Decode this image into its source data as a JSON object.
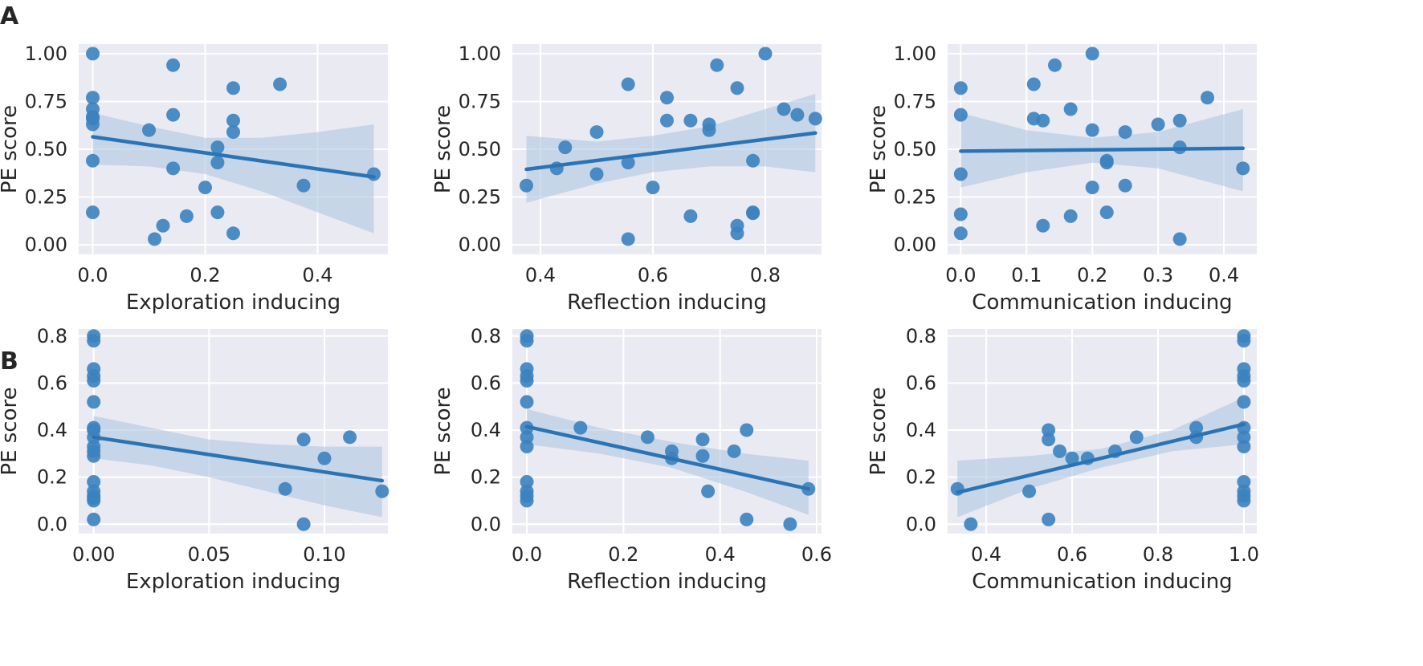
{
  "figure": {
    "row_labels": [
      "A",
      "B"
    ]
  },
  "colors": {
    "background": "#eaeaf2",
    "grid": "#ffffff",
    "points": "#3b82bf",
    "line": "#2a74b5",
    "band": "#a8c3df"
  },
  "chart_data": [
    {
      "type": "scatter",
      "row": "A",
      "xlabel": "Exploration inducing",
      "ylabel": "PE score",
      "xlim": [
        -0.025,
        0.525
      ],
      "ylim": [
        -0.05,
        1.05
      ],
      "xticks": [
        "0.0",
        "0.2",
        "0.4"
      ],
      "yticks": [
        "0.00",
        "0.25",
        "0.50",
        "0.75",
        "1.00"
      ],
      "points": [
        [
          0,
          1.0
        ],
        [
          0,
          0.77
        ],
        [
          0,
          0.71
        ],
        [
          0,
          0.67
        ],
        [
          0,
          0.66
        ],
        [
          0,
          0.63
        ],
        [
          0,
          0.44
        ],
        [
          0,
          0.17
        ],
        [
          0.1,
          0.6
        ],
        [
          0.11,
          0.03
        ],
        [
          0.125,
          0.1
        ],
        [
          0.143,
          0.94
        ],
        [
          0.143,
          0.68
        ],
        [
          0.143,
          0.4
        ],
        [
          0.167,
          0.15
        ],
        [
          0.2,
          0.3
        ],
        [
          0.222,
          0.51
        ],
        [
          0.222,
          0.43
        ],
        [
          0.222,
          0.17
        ],
        [
          0.25,
          0.82
        ],
        [
          0.25,
          0.65
        ],
        [
          0.25,
          0.59
        ],
        [
          0.25,
          0.06
        ],
        [
          0.333,
          0.84
        ],
        [
          0.375,
          0.31
        ],
        [
          0.5,
          0.37
        ]
      ],
      "regression": {
        "x": [
          0,
          0.5
        ],
        "y": [
          0.565,
          0.355
        ]
      },
      "ci_band": {
        "x": [
          0,
          0.1,
          0.2,
          0.3,
          0.4,
          0.5
        ],
        "lower": [
          0.42,
          0.41,
          0.37,
          0.28,
          0.17,
          0.06
        ],
        "upper": [
          0.69,
          0.62,
          0.56,
          0.56,
          0.59,
          0.63
        ]
      }
    },
    {
      "type": "scatter",
      "row": "A",
      "xlabel": "Reflection inducing",
      "ylabel": "PE score",
      "xlim": [
        0.35,
        0.9
      ],
      "ylim": [
        -0.05,
        1.05
      ],
      "xticks": [
        "0.4",
        "0.6",
        "0.8"
      ],
      "yticks": [
        "0.00",
        "0.25",
        "0.50",
        "0.75",
        "1.00"
      ],
      "points": [
        [
          0.375,
          0.31
        ],
        [
          0.429,
          0.4
        ],
        [
          0.444,
          0.51
        ],
        [
          0.5,
          0.59
        ],
        [
          0.5,
          0.37
        ],
        [
          0.556,
          0.84
        ],
        [
          0.556,
          0.43
        ],
        [
          0.556,
          0.03
        ],
        [
          0.6,
          0.3
        ],
        [
          0.625,
          0.77
        ],
        [
          0.625,
          0.65
        ],
        [
          0.667,
          0.65
        ],
        [
          0.667,
          0.15
        ],
        [
          0.7,
          0.63
        ],
        [
          0.7,
          0.6
        ],
        [
          0.714,
          0.94
        ],
        [
          0.75,
          0.82
        ],
        [
          0.75,
          0.1
        ],
        [
          0.75,
          0.06
        ],
        [
          0.778,
          0.44
        ],
        [
          0.778,
          0.17
        ],
        [
          0.778,
          0.165
        ],
        [
          0.8,
          1.0
        ],
        [
          0.833,
          0.71
        ],
        [
          0.857,
          0.68
        ],
        [
          0.889,
          0.66
        ]
      ],
      "regression": {
        "x": [
          0.375,
          0.889
        ],
        "y": [
          0.395,
          0.585
        ]
      },
      "ci_band": {
        "x": [
          0.375,
          0.5,
          0.6,
          0.7,
          0.8,
          0.889
        ],
        "lower": [
          0.22,
          0.32,
          0.38,
          0.41,
          0.41,
          0.38
        ],
        "upper": [
          0.57,
          0.54,
          0.57,
          0.62,
          0.71,
          0.79
        ]
      }
    },
    {
      "type": "scatter",
      "row": "A",
      "xlabel": "Communication inducing",
      "ylabel": "PE score",
      "xlim": [
        -0.02,
        0.45
      ],
      "ylim": [
        -0.05,
        1.05
      ],
      "xticks": [
        "0.0",
        "0.1",
        "0.2",
        "0.3",
        "0.4"
      ],
      "yticks": [
        "0.00",
        "0.25",
        "0.50",
        "0.75",
        "1.00"
      ],
      "points": [
        [
          0,
          0.82
        ],
        [
          0,
          0.68
        ],
        [
          0,
          0.37
        ],
        [
          0,
          0.16
        ],
        [
          0,
          0.06
        ],
        [
          0.111,
          0.84
        ],
        [
          0.111,
          0.66
        ],
        [
          0.125,
          0.65
        ],
        [
          0.125,
          0.1
        ],
        [
          0.143,
          0.94
        ],
        [
          0.167,
          0.71
        ],
        [
          0.167,
          0.15
        ],
        [
          0.2,
          1.0
        ],
        [
          0.2,
          0.6
        ],
        [
          0.2,
          0.3
        ],
        [
          0.222,
          0.44
        ],
        [
          0.222,
          0.43
        ],
        [
          0.222,
          0.17
        ],
        [
          0.25,
          0.59
        ],
        [
          0.25,
          0.31
        ],
        [
          0.3,
          0.63
        ],
        [
          0.333,
          0.65
        ],
        [
          0.333,
          0.51
        ],
        [
          0.333,
          0.03
        ],
        [
          0.375,
          0.77
        ],
        [
          0.429,
          0.4
        ]
      ],
      "regression": {
        "x": [
          0,
          0.429
        ],
        "y": [
          0.49,
          0.505
        ]
      },
      "ci_band": {
        "x": [
          0,
          0.1,
          0.2,
          0.3,
          0.429
        ],
        "lower": [
          0.3,
          0.38,
          0.43,
          0.4,
          0.28
        ],
        "upper": [
          0.69,
          0.6,
          0.56,
          0.59,
          0.71
        ]
      }
    },
    {
      "type": "scatter",
      "row": "B",
      "xlabel": "Exploration inducing",
      "ylabel": "PE score",
      "xlim": [
        -0.0065,
        0.1275
      ],
      "ylim": [
        -0.04,
        0.83
      ],
      "xticks": [
        "0.00",
        "0.05",
        "0.10"
      ],
      "yticks": [
        "0.0",
        "0.2",
        "0.4",
        "0.6",
        "0.8"
      ],
      "points": [
        [
          0,
          0.8
        ],
        [
          0,
          0.78
        ],
        [
          0,
          0.66
        ],
        [
          0,
          0.63
        ],
        [
          0,
          0.61
        ],
        [
          0,
          0.52
        ],
        [
          0,
          0.41
        ],
        [
          0,
          0.4
        ],
        [
          0,
          0.37
        ],
        [
          0,
          0.33
        ],
        [
          0,
          0.31
        ],
        [
          0,
          0.29
        ],
        [
          0,
          0.18
        ],
        [
          0,
          0.14
        ],
        [
          0,
          0.12
        ],
        [
          0,
          0.11
        ],
        [
          0,
          0.1
        ],
        [
          0,
          0.02
        ],
        [
          0.083,
          0.15
        ],
        [
          0.091,
          0.36
        ],
        [
          0.091,
          0.0
        ],
        [
          0.1,
          0.28
        ],
        [
          0.111,
          0.37
        ],
        [
          0.125,
          0.14
        ]
      ],
      "regression": {
        "x": [
          0,
          0.125
        ],
        "y": [
          0.37,
          0.185
        ]
      },
      "ci_band": {
        "x": [
          0,
          0.025,
          0.05,
          0.075,
          0.1,
          0.125
        ],
        "lower": [
          0.28,
          0.25,
          0.2,
          0.14,
          0.08,
          0.03
        ],
        "upper": [
          0.46,
          0.41,
          0.36,
          0.34,
          0.33,
          0.33
        ]
      }
    },
    {
      "type": "scatter",
      "row": "B",
      "xlabel": "Reflection inducing",
      "ylabel": "PE score",
      "xlim": [
        -0.03,
        0.61
      ],
      "ylim": [
        -0.04,
        0.83
      ],
      "xticks": [
        "0.0",
        "0.2",
        "0.4",
        "0.6"
      ],
      "yticks": [
        "0.0",
        "0.2",
        "0.4",
        "0.6",
        "0.8"
      ],
      "points": [
        [
          0,
          0.8
        ],
        [
          0,
          0.78
        ],
        [
          0,
          0.66
        ],
        [
          0,
          0.63
        ],
        [
          0,
          0.61
        ],
        [
          0,
          0.52
        ],
        [
          0,
          0.41
        ],
        [
          0,
          0.37
        ],
        [
          0,
          0.33
        ],
        [
          0,
          0.18
        ],
        [
          0,
          0.14
        ],
        [
          0,
          0.12
        ],
        [
          0,
          0.1
        ],
        [
          0.111,
          0.41
        ],
        [
          0.25,
          0.37
        ],
        [
          0.3,
          0.31
        ],
        [
          0.3,
          0.28
        ],
        [
          0.364,
          0.36
        ],
        [
          0.364,
          0.29
        ],
        [
          0.375,
          0.14
        ],
        [
          0.429,
          0.31
        ],
        [
          0.455,
          0.4
        ],
        [
          0.455,
          0.02
        ],
        [
          0.545,
          0.0
        ],
        [
          0.583,
          0.15
        ]
      ],
      "regression": {
        "x": [
          0,
          0.583
        ],
        "y": [
          0.415,
          0.15
        ]
      },
      "ci_band": {
        "x": [
          0,
          0.15,
          0.3,
          0.45,
          0.583
        ],
        "lower": [
          0.34,
          0.3,
          0.24,
          0.14,
          0.04
        ],
        "upper": [
          0.49,
          0.41,
          0.35,
          0.3,
          0.27
        ]
      }
    },
    {
      "type": "scatter",
      "row": "B",
      "xlabel": "Communication inducing",
      "ylabel": "PE score",
      "xlim": [
        0.31,
        1.03
      ],
      "ylim": [
        -0.04,
        0.83
      ],
      "xticks": [
        "0.4",
        "0.6",
        "0.8",
        "1.0"
      ],
      "yticks": [
        "0.0",
        "0.2",
        "0.4",
        "0.6",
        "0.8"
      ],
      "points": [
        [
          0.333,
          0.15
        ],
        [
          0.364,
          0.0
        ],
        [
          0.5,
          0.14
        ],
        [
          0.545,
          0.4
        ],
        [
          0.545,
          0.36
        ],
        [
          0.545,
          0.02
        ],
        [
          0.571,
          0.31
        ],
        [
          0.6,
          0.28
        ],
        [
          0.636,
          0.28
        ],
        [
          0.7,
          0.31
        ],
        [
          0.75,
          0.37
        ],
        [
          0.889,
          0.41
        ],
        [
          0.889,
          0.37
        ],
        [
          1.0,
          0.8
        ],
        [
          1.0,
          0.78
        ],
        [
          1.0,
          0.66
        ],
        [
          1.0,
          0.63
        ],
        [
          1.0,
          0.61
        ],
        [
          1.0,
          0.52
        ],
        [
          1.0,
          0.41
        ],
        [
          1.0,
          0.37
        ],
        [
          1.0,
          0.33
        ],
        [
          1.0,
          0.18
        ],
        [
          1.0,
          0.14
        ],
        [
          1.0,
          0.12
        ],
        [
          1.0,
          0.1
        ]
      ],
      "regression": {
        "x": [
          0.333,
          1.0
        ],
        "y": [
          0.135,
          0.425
        ]
      },
      "ci_band": {
        "x": [
          0.333,
          0.5,
          0.667,
          0.833,
          1.0
        ],
        "lower": [
          0.03,
          0.15,
          0.24,
          0.31,
          0.34
        ],
        "upper": [
          0.27,
          0.29,
          0.32,
          0.4,
          0.54
        ]
      }
    }
  ]
}
